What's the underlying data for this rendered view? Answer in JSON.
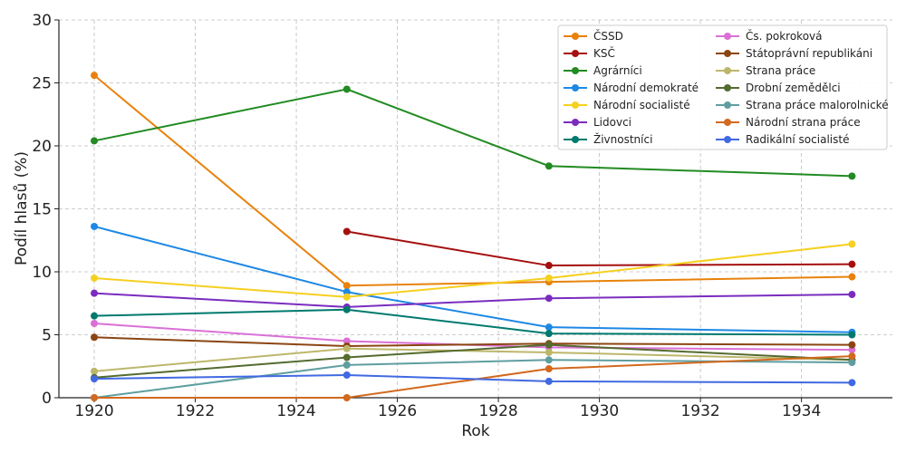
{
  "chart_data": {
    "type": "line",
    "xlabel": "Rok",
    "ylabel": "Podíl hlasů (%)",
    "xlim": [
      1919.3,
      1935.8
    ],
    "ylim": [
      0,
      30
    ],
    "xticks": [
      1920,
      1922,
      1924,
      1926,
      1928,
      1930,
      1932,
      1934
    ],
    "yticks": [
      0,
      5,
      10,
      15,
      20,
      25,
      30
    ],
    "grid": true,
    "legend_position": "top-right",
    "x": [
      1920,
      1925,
      1929,
      1935
    ],
    "series": [
      {
        "name": "ČSSD",
        "color": "#e8820c",
        "values": [
          25.6,
          8.9,
          9.2,
          9.6
        ]
      },
      {
        "name": "KSČ",
        "color": "#a50f0f",
        "values": [
          null,
          13.2,
          10.5,
          10.6
        ]
      },
      {
        "name": "Agrárníci",
        "color": "#228b22",
        "values": [
          20.4,
          24.5,
          18.4,
          17.6
        ]
      },
      {
        "name": "Národní demokraté",
        "color": "#1e88e5",
        "values": [
          13.6,
          8.4,
          5.6,
          5.2
        ]
      },
      {
        "name": "Národní socialisté",
        "color": "#f5d020",
        "values": [
          9.5,
          8.0,
          9.5,
          12.2
        ]
      },
      {
        "name": "Lidovci",
        "color": "#7b2cbf",
        "values": [
          8.3,
          7.2,
          7.9,
          8.2
        ]
      },
      {
        "name": "Živnostníci",
        "color": "#007a6e",
        "values": [
          6.5,
          7.0,
          5.1,
          5.0
        ]
      },
      {
        "name": "Čs. pokroková",
        "color": "#da70d6",
        "values": [
          5.9,
          4.5,
          4.0,
          3.8
        ]
      },
      {
        "name": "Státoprávní republikáni",
        "color": "#8b4513",
        "values": [
          4.8,
          4.1,
          4.3,
          4.2
        ]
      },
      {
        "name": "Strana práce",
        "color": "#bdb76b",
        "values": [
          2.1,
          3.9,
          3.6,
          3.0
        ]
      },
      {
        "name": "Drobní zemědělci",
        "color": "#556b2f",
        "values": [
          1.6,
          3.2,
          4.2,
          3.0
        ]
      },
      {
        "name": "Strana práce malorolnické",
        "color": "#5f9ea0",
        "values": [
          0.0,
          2.6,
          3.0,
          2.8
        ]
      },
      {
        "name": "Národní strana práce",
        "color": "#d2691e",
        "values": [
          0.0,
          0.0,
          2.3,
          3.3
        ]
      },
      {
        "name": "Radikální socialisté",
        "color": "#4169e1",
        "values": [
          1.5,
          1.8,
          1.3,
          1.2
        ]
      }
    ]
  }
}
